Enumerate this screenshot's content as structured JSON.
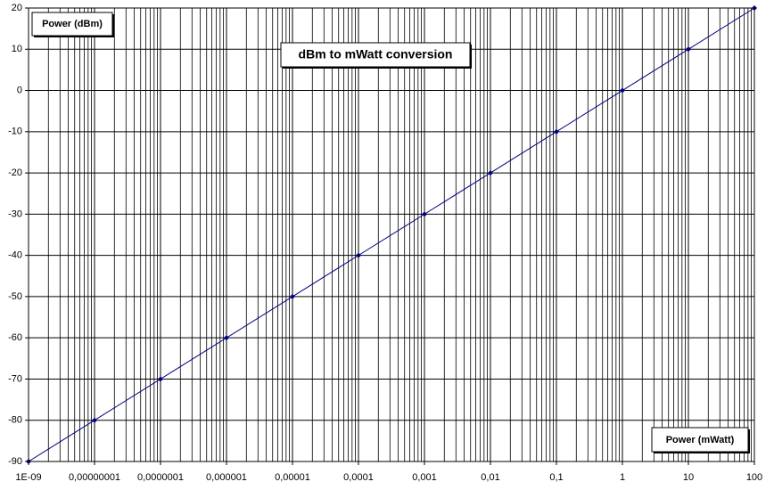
{
  "chart_data": {
    "type": "line",
    "title": "dBm to mWatt conversion",
    "y_label": "Power (dBm)",
    "x_label": "Power (mWatt)",
    "x": [
      1e-09,
      1e-08,
      1e-07,
      1e-06,
      1e-05,
      0.0001,
      0.001,
      0.01,
      0.1,
      1,
      10,
      100
    ],
    "series": [
      {
        "name": "Power (dBm)",
        "color": "#000080",
        "values": [
          -90,
          -80,
          -70,
          -60,
          -50,
          -40,
          -30,
          -20,
          -10,
          0,
          10,
          20
        ]
      }
    ],
    "xlim": [
      1e-09,
      100
    ],
    "x_log": true,
    "xticks": [
      {
        "value": 1e-09,
        "label": "1E-09"
      },
      {
        "value": 1e-08,
        "label": "0,00000001"
      },
      {
        "value": 1e-07,
        "label": "0,0000001"
      },
      {
        "value": 1e-06,
        "label": "0,000001"
      },
      {
        "value": 1e-05,
        "label": "0,00001"
      },
      {
        "value": 0.0001,
        "label": "0,0001"
      },
      {
        "value": 0.001,
        "label": "0,001"
      },
      {
        "value": 0.01,
        "label": "0,01"
      },
      {
        "value": 0.1,
        "label": "0,1"
      },
      1,
      10,
      100
    ],
    "ylim": [
      -90,
      20
    ],
    "yticks": [
      -90,
      -80,
      -70,
      -60,
      -50,
      -40,
      -30,
      -20,
      -10,
      0,
      10,
      20
    ],
    "grid": true,
    "minor_grid": true
  }
}
